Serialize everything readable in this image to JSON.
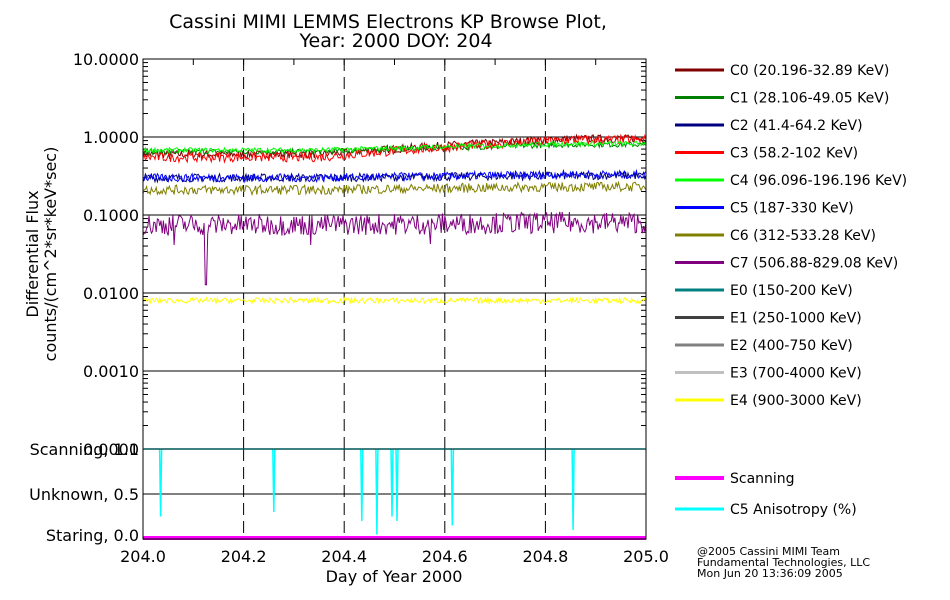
{
  "title_line1": "Cassini MIMI LEMMS Electrons KP Browse Plot,",
  "title_line2": "Year: 2000 DOY: 204",
  "footer": [
    "@2005 Cassini MIMI Team",
    "Fundamental Technologies, LLC",
    "Mon Jun 20 13:36:09 2005"
  ],
  "chart_data": [
    {
      "type": "line",
      "title": "Cassini MIMI LEMMS Electrons KP Browse Plot, Year: 2000 DOY: 204",
      "xlabel": "Day of Year 2000",
      "ylabel": [
        "Differential Flux",
        "counts/(cm^2*sr*keV*sec)"
      ],
      "yscale": "log",
      "xlim": [
        204.0,
        205.0
      ],
      "ylim": [
        0.0001,
        10.0
      ],
      "x_ticks": [
        204.0,
        204.2,
        204.4,
        204.6,
        204.8,
        205.0
      ],
      "x_tick_labels": [
        "204.0",
        "204.2",
        "204.4",
        "204.6",
        "204.8",
        "205.0"
      ],
      "y_ticks": [
        0.0001,
        0.001,
        0.01,
        0.1,
        1,
        10
      ],
      "y_tick_labels": [
        "0.0001",
        "0.0010",
        "0.0100",
        "0.1000",
        "1.0000",
        "10.0000"
      ],
      "series": [
        {
          "name": "C0 (20.196-32.89 KeV)",
          "color": "#800000",
          "level_start": 0.6,
          "level_end": 0.95,
          "noise": 0.12
        },
        {
          "name": "C1 (28.106-49.05 KeV)",
          "color": "#008000",
          "level_start": 0.65,
          "level_end": 0.8,
          "noise": 0.08
        },
        {
          "name": "C2 (41.4-64.2 KeV)",
          "color": "#000080",
          "level_start": 0.3,
          "level_end": 0.32,
          "noise": 0.12
        },
        {
          "name": "C3 (58.2-102 KeV)",
          "color": "#ff0000",
          "level_start": 0.55,
          "level_end": 0.92,
          "noise": 0.14
        },
        {
          "name": "C4 (96.096-196.196 KeV)",
          "color": "#00ff00",
          "level_start": 0.68,
          "level_end": 0.82,
          "noise": 0.07
        },
        {
          "name": "C5 (187-330 KeV)",
          "color": "#0000ff",
          "level_start": 0.3,
          "level_end": 0.33,
          "noise": 0.12
        },
        {
          "name": "C6 (312-533.28 KeV)",
          "color": "#808000",
          "level_start": 0.21,
          "level_end": 0.23,
          "noise": 0.14
        },
        {
          "name": "C7 (506.88-829.08 KeV)",
          "color": "#800080",
          "level_start": 0.075,
          "level_end": 0.08,
          "noise": 0.32
        },
        {
          "name": "E0 (150-200 KeV)",
          "color": "#008080",
          "level_start": null,
          "level_end": null,
          "noise": 0
        },
        {
          "name": "E1 (250-1000 KeV)",
          "color": "#404040",
          "level_start": null,
          "level_end": null,
          "noise": 0
        },
        {
          "name": "E2 (400-750 KeV)",
          "color": "#808080",
          "level_start": null,
          "level_end": null,
          "noise": 0
        },
        {
          "name": "E3 (700-4000 KeV)",
          "color": "#c0c0c0",
          "level_start": null,
          "level_end": null,
          "noise": 0
        },
        {
          "name": "E4 (900-3000 KeV)",
          "color": "#ffff00",
          "level_start": 0.008,
          "level_end": 0.008,
          "noise": 0.08
        }
      ]
    },
    {
      "type": "line",
      "xlabel": "Day of Year 2000",
      "xlim": [
        204.0,
        205.0
      ],
      "ylim": [
        0.0,
        1.0
      ],
      "y_ticks": [
        0.0,
        0.5,
        1.0
      ],
      "y_tick_labels": [
        "Staring, 0.0",
        "Unknown, 0.5",
        "Scanning, 1.0"
      ],
      "series": [
        {
          "name": "Scanning",
          "color": "#ff00ff",
          "value": 0.0
        },
        {
          "name": "C5 Anisotropy (%)",
          "color": "#00ffff",
          "value": 1.0,
          "dips": [
            [
              204.035,
              0.25
            ],
            [
              204.26,
              0.3
            ],
            [
              204.435,
              0.2
            ],
            [
              204.465,
              0.05
            ],
            [
              204.495,
              0.25
            ],
            [
              204.505,
              0.2
            ],
            [
              204.615,
              0.15
            ],
            [
              204.855,
              0.1
            ]
          ]
        }
      ]
    }
  ]
}
